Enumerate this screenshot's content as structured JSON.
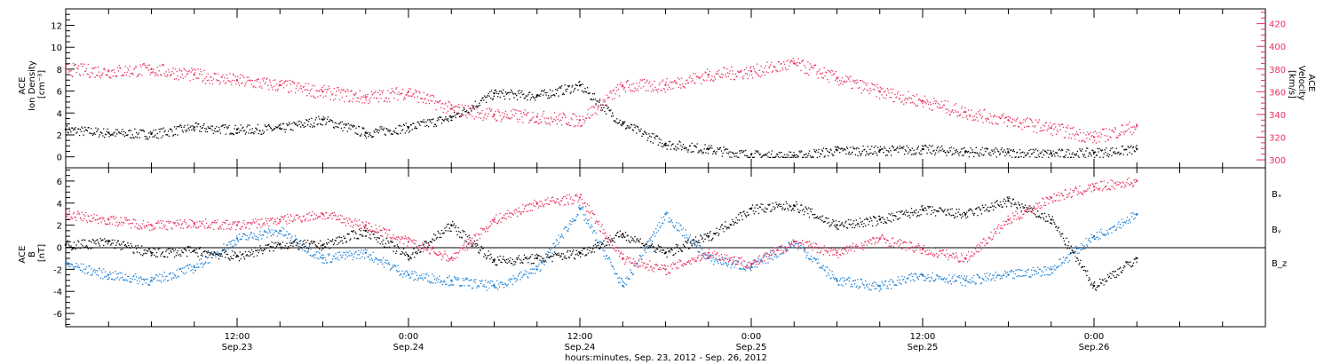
{
  "xaxis": {
    "label": "hours:minutes, Sep. 23, 2012 - Sep. 26, 2012",
    "ticks": [
      {
        "t": 0.5,
        "time": "12:00",
        "date": "Sep.23"
      },
      {
        "t": 1.0,
        "time": "0:00",
        "date": "Sep.24"
      },
      {
        "t": 1.5,
        "time": "12:00",
        "date": "Sep.24"
      },
      {
        "t": 2.0,
        "time": "0:00",
        "date": "Sep.25"
      },
      {
        "t": 2.5,
        "time": "12:00",
        "date": "Sep.25"
      },
      {
        "t": 3.0,
        "time": "0:00",
        "date": "Sep.26"
      }
    ]
  },
  "top_panel": {
    "left_label": [
      "ACE",
      "Ion Density",
      "[cm⁻³]"
    ],
    "right_label": [
      "ACE",
      "Velocity",
      "[km/s]"
    ],
    "left_ticks": [
      "0",
      "2",
      "4",
      "6",
      "8",
      "10",
      "12"
    ],
    "right_ticks": [
      "300",
      "320",
      "340",
      "360",
      "380",
      "400",
      "420"
    ]
  },
  "bottom_panel": {
    "left_label": [
      "ACE",
      "B",
      "[nT]"
    ],
    "left_ticks": [
      "-6",
      "-4",
      "-2",
      "0",
      "2",
      "4",
      "6"
    ],
    "legend": [
      {
        "label": "Bₓ",
        "color": "#000000"
      },
      {
        "label": "Bᵧ",
        "color": "#1a7fd4"
      },
      {
        "label": "B_z",
        "color": "#e8305e"
      }
    ]
  },
  "colors": {
    "density": "#000000",
    "velocity": "#e8305e",
    "bx": "#000000",
    "by": "#1a7fd4",
    "bz": "#e8305e"
  },
  "chart_data": [
    {
      "type": "scatter",
      "xlabel": "hours:minutes, Sep. 23, 2012 - Sep. 26, 2012",
      "xlim": [
        "2012-09-23 00:00",
        "2012-09-26 12:00"
      ],
      "ylabel": "ACE Ion Density [cm⁻³]",
      "ylim": [
        -1,
        13.5
      ],
      "y2label": "ACE Velocity [km/s]",
      "y2lim": [
        293,
        433
      ],
      "series": [
        {
          "name": "Ion Density",
          "axis": "left",
          "color": "#000000",
          "x": [
            "2012-09-23 00:00",
            "2012-09-23 03:00",
            "2012-09-23 06:00",
            "2012-09-23 09:00",
            "2012-09-23 12:00",
            "2012-09-23 15:00",
            "2012-09-23 18:00",
            "2012-09-23 21:00",
            "2012-09-24 00:00",
            "2012-09-24 03:00",
            "2012-09-24 06:00",
            "2012-09-24 09:00",
            "2012-09-24 12:00",
            "2012-09-24 15:00",
            "2012-09-24 18:00",
            "2012-09-24 21:00",
            "2012-09-25 00:00",
            "2012-09-25 03:00",
            "2012-09-25 06:00",
            "2012-09-25 09:00",
            "2012-09-25 12:00",
            "2012-09-25 15:00",
            "2012-09-25 18:00",
            "2012-09-25 21:00",
            "2012-09-26 00:00",
            "2012-09-26 03:00"
          ],
          "y": [
            2.5,
            2.2,
            2.1,
            2.7,
            2.5,
            2.6,
            3.4,
            2.2,
            2.7,
            3.6,
            5.8,
            5.6,
            6.5,
            3.0,
            1.2,
            0.7,
            0.2,
            0.1,
            0.6,
            0.6,
            0.7,
            0.5,
            0.4,
            0.3,
            0.4,
            0.7
          ]
        },
        {
          "name": "Velocity",
          "axis": "right",
          "color": "#e8305e",
          "x": [
            "2012-09-23 00:00",
            "2012-09-23 03:00",
            "2012-09-23 06:00",
            "2012-09-23 09:00",
            "2012-09-23 12:00",
            "2012-09-23 15:00",
            "2012-09-23 18:00",
            "2012-09-23 21:00",
            "2012-09-24 00:00",
            "2012-09-24 03:00",
            "2012-09-24 06:00",
            "2012-09-24 09:00",
            "2012-09-24 12:00",
            "2012-09-24 15:00",
            "2012-09-24 18:00",
            "2012-09-24 21:00",
            "2012-09-25 00:00",
            "2012-09-25 03:00",
            "2012-09-25 06:00",
            "2012-09-25 09:00",
            "2012-09-25 12:00",
            "2012-09-25 15:00",
            "2012-09-25 18:00",
            "2012-09-25 21:00",
            "2012-09-26 00:00",
            "2012-09-26 03:00"
          ],
          "y": [
            380,
            378,
            380,
            375,
            370,
            366,
            360,
            355,
            360,
            345,
            340,
            338,
            335,
            365,
            366,
            375,
            378,
            385,
            372,
            360,
            352,
            342,
            335,
            328,
            320,
            330
          ]
        }
      ]
    },
    {
      "type": "scatter",
      "xlabel": "hours:minutes, Sep. 23, 2012 - Sep. 26, 2012",
      "xlim": [
        "2012-09-23 00:00",
        "2012-09-26 12:00"
      ],
      "ylabel": "ACE B [nT]",
      "ylim": [
        -7.2,
        7.2
      ],
      "series": [
        {
          "name": "Bₓ",
          "color": "#000000",
          "x": [
            "2012-09-23 00:00",
            "2012-09-23 03:00",
            "2012-09-23 06:00",
            "2012-09-23 09:00",
            "2012-09-23 12:00",
            "2012-09-23 15:00",
            "2012-09-23 18:00",
            "2012-09-23 21:00",
            "2012-09-24 00:00",
            "2012-09-24 03:00",
            "2012-09-24 06:00",
            "2012-09-24 09:00",
            "2012-09-24 12:00",
            "2012-09-24 15:00",
            "2012-09-24 18:00",
            "2012-09-24 21:00",
            "2012-09-25 00:00",
            "2012-09-25 03:00",
            "2012-09-25 06:00",
            "2012-09-25 09:00",
            "2012-09-25 12:00",
            "2012-09-25 15:00",
            "2012-09-25 18:00",
            "2012-09-25 21:00",
            "2012-09-26 00:00",
            "2012-09-26 03:00"
          ],
          "y": [
            0.2,
            0.5,
            -0.5,
            -0.3,
            -0.8,
            0.3,
            0.2,
            1.5,
            -0.8,
            2.0,
            -1.2,
            -1.0,
            -0.5,
            1.2,
            -0.5,
            1.0,
            3.5,
            3.8,
            2.0,
            2.5,
            3.4,
            3.0,
            4.2,
            2.5,
            -3.5,
            -1.0
          ]
        },
        {
          "name": "Bᵧ",
          "color": "#1a7fd4",
          "x": [
            "2012-09-23 00:00",
            "2012-09-23 03:00",
            "2012-09-23 06:00",
            "2012-09-23 09:00",
            "2012-09-23 12:00",
            "2012-09-23 15:00",
            "2012-09-23 18:00",
            "2012-09-23 21:00",
            "2012-09-24 00:00",
            "2012-09-24 03:00",
            "2012-09-24 06:00",
            "2012-09-24 09:00",
            "2012-09-24 12:00",
            "2012-09-24 15:00",
            "2012-09-24 18:00",
            "2012-09-24 21:00",
            "2012-09-25 00:00",
            "2012-09-25 03:00",
            "2012-09-25 06:00",
            "2012-09-25 09:00",
            "2012-09-25 12:00",
            "2012-09-25 15:00",
            "2012-09-25 18:00",
            "2012-09-25 21:00",
            "2012-09-26 00:00",
            "2012-09-26 03:00"
          ],
          "y": [
            -1.5,
            -2.5,
            -3.0,
            -1.8,
            0.8,
            1.5,
            -1.0,
            -0.5,
            -2.5,
            -3.0,
            -3.5,
            -2.0,
            3.5,
            -3.5,
            3.0,
            -1.0,
            -1.8,
            0.5,
            -3.0,
            -3.5,
            -2.5,
            -3.0,
            -2.5,
            -2.0,
            1.0,
            3.0
          ]
        },
        {
          "name": "B_z",
          "color": "#e8305e",
          "x": [
            "2012-09-23 00:00",
            "2012-09-23 03:00",
            "2012-09-23 06:00",
            "2012-09-23 09:00",
            "2012-09-23 12:00",
            "2012-09-23 15:00",
            "2012-09-23 18:00",
            "2012-09-23 21:00",
            "2012-09-24 00:00",
            "2012-09-24 03:00",
            "2012-09-24 06:00",
            "2012-09-24 09:00",
            "2012-09-24 12:00",
            "2012-09-24 15:00",
            "2012-09-24 18:00",
            "2012-09-24 21:00",
            "2012-09-25 00:00",
            "2012-09-25 03:00",
            "2012-09-25 06:00",
            "2012-09-25 09:00",
            "2012-09-25 12:00",
            "2012-09-25 15:00",
            "2012-09-25 18:00",
            "2012-09-25 21:00",
            "2012-09-26 00:00",
            "2012-09-26 03:00"
          ],
          "y": [
            3.0,
            2.5,
            2.0,
            2.2,
            2.0,
            2.5,
            3.0,
            2.0,
            0.5,
            -1.0,
            2.5,
            4.0,
            4.5,
            -1.0,
            -2.0,
            -0.5,
            -1.5,
            0.5,
            -0.5,
            0.8,
            -0.2,
            -1.0,
            2.5,
            4.5,
            5.5,
            6.0
          ]
        }
      ]
    }
  ]
}
